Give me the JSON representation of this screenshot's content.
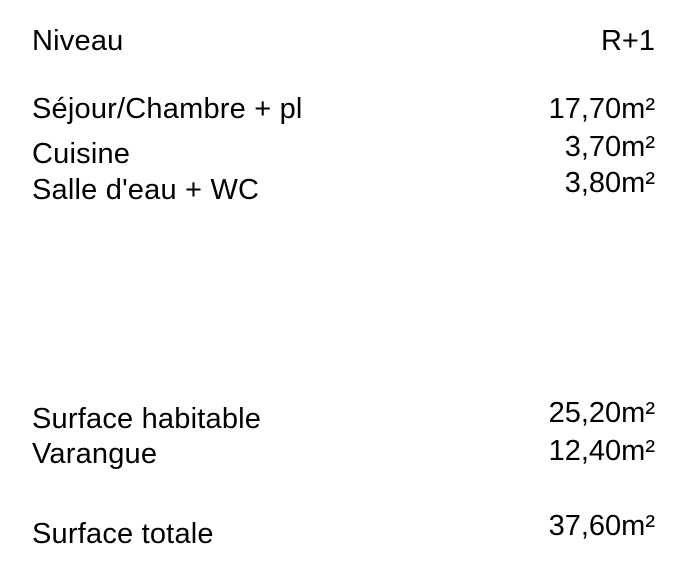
{
  "colors": {
    "text": "#000000",
    "background": "#ffffff"
  },
  "header": {
    "label": "Niveau",
    "value": "R+1"
  },
  "rooms": [
    {
      "label": "Séjour/Chambre + pl",
      "value": "17,70m²"
    },
    {
      "label": "Cuisine",
      "value": "3,70m²"
    },
    {
      "label": "Salle d'eau + WC",
      "value": "3,80m²"
    }
  ],
  "summary": [
    {
      "label": "Surface habitable",
      "value": "25,20m²"
    },
    {
      "label": "Varangue",
      "value": "12,40m²"
    }
  ],
  "total": {
    "label": "Surface totale",
    "value": "37,60m²"
  }
}
